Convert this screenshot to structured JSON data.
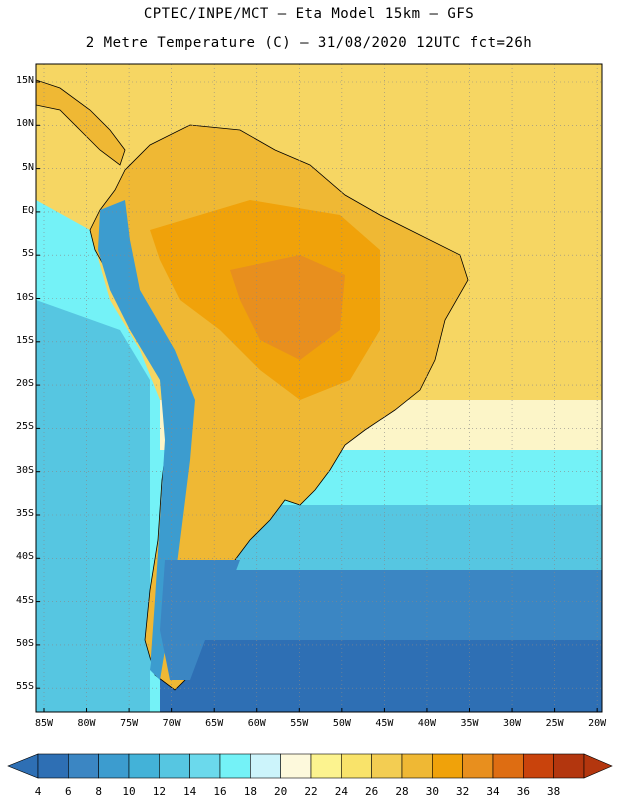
{
  "title": {
    "line1": "CPTEC/INPE/MCT –  Eta Model 15km – GFS",
    "line2": "2 Metre Temperature (C) – 31/08/2020 12UTC fct=26h"
  },
  "lat_labels": [
    "15N",
    "10N",
    "5N",
    "EQ",
    "5S",
    "10S",
    "15S",
    "20S",
    "25S",
    "30S",
    "35S",
    "40S",
    "45S",
    "50S",
    "55S"
  ],
  "lon_labels": [
    "85W",
    "80W",
    "75W",
    "70W",
    "65W",
    "60W",
    "55W",
    "50W",
    "45W",
    "40W",
    "35W",
    "30W",
    "25W",
    "20W"
  ],
  "colorbar": {
    "labels": [
      "4",
      "6",
      "8",
      "10",
      "12",
      "14",
      "16",
      "18",
      "20",
      "22",
      "24",
      "26",
      "28",
      "30",
      "32",
      "34",
      "36",
      "38"
    ],
    "colors": [
      "#2e6fb4",
      "#3b86c3",
      "#3c9ccf",
      "#43b2d8",
      "#56c6e1",
      "#6bd9ec",
      "#74f2f7",
      "#ccf4fb",
      "#fdf9dc",
      "#fcf38f",
      "#f9e36a",
      "#f3cd52",
      "#efb834",
      "#f0a20a",
      "#e88f1e",
      "#de6d12",
      "#c9430c",
      "#b3360e"
    ],
    "left_arrow_color": "#2e6fb4",
    "right_arrow_color": "#b3360e"
  },
  "map_colors": {
    "ocean_tropical": "#f6d663",
    "ocean_cool": "#fcf5c8",
    "ocean_cold": "#74f2f7",
    "ocean_colder": "#56c6e1",
    "ocean_south": "#3b86c3",
    "ocean_far_south": "#2e6fb4",
    "land_hot": "#f0a20a",
    "land_very_hot": "#e88f1e",
    "land_warm": "#efb834",
    "andes": "#3c9ccf",
    "patagonia": "#3b86c3"
  }
}
